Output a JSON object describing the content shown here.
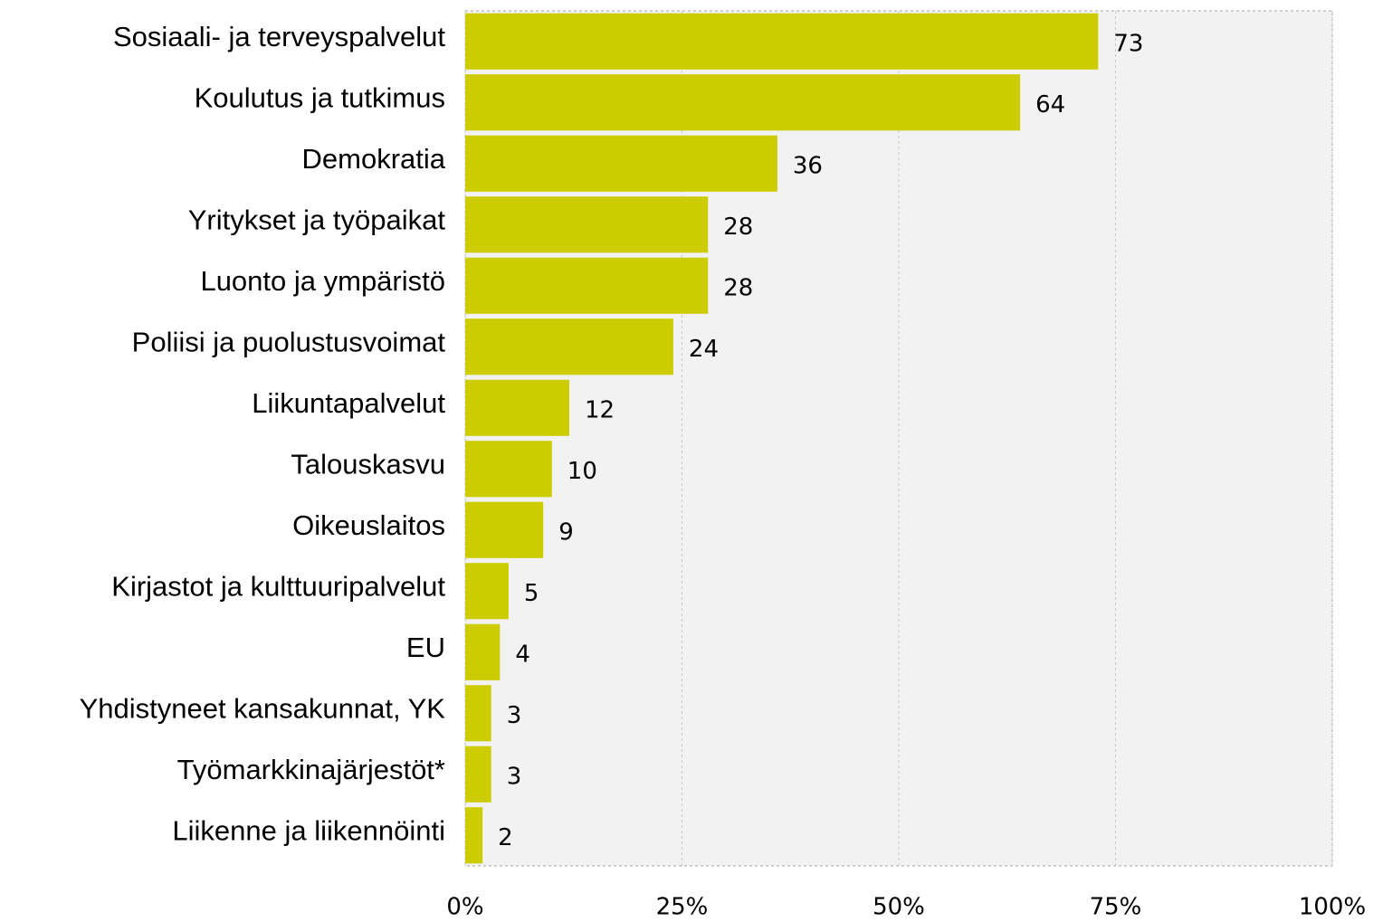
{
  "chart_data": {
    "type": "bar",
    "orientation": "horizontal",
    "categories": [
      "Sosiaali- ja terveyspalvelut",
      "Koulutus ja tutkimus",
      "Demokratia",
      "Yritykset ja työpaikat",
      "Luonto ja ympäristö",
      "Poliisi ja puolustusvoimat",
      "Liikuntapalvelut",
      "Talouskasvu",
      "Oikeuslaitos",
      "Kirjastot ja kulttuuripalvelut",
      "EU",
      "Yhdistyneet kansakunnat, YK",
      "Työmarkkinajärjestöt*",
      "Liikenne ja liikennöinti"
    ],
    "values": [
      73,
      64,
      36,
      28,
      28,
      24,
      12,
      10,
      9,
      5,
      4,
      3,
      3,
      2
    ],
    "color": "#cccc00",
    "xlim": [
      0,
      100
    ],
    "xticks": [
      {
        "value": 0,
        "label": "0%"
      },
      {
        "value": 25,
        "label": "25%"
      },
      {
        "value": 50,
        "label": "50%"
      },
      {
        "value": 75,
        "label": "75%"
      },
      {
        "value": 100,
        "label": "100%"
      }
    ],
    "grid": true
  }
}
